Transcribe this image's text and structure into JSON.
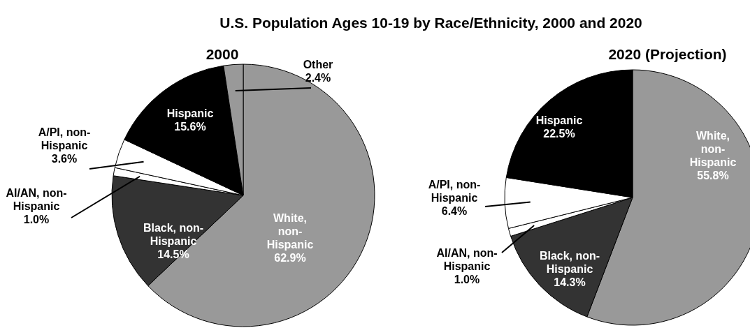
{
  "chart_data": [
    {
      "type": "pie",
      "title": "U.S. Population Ages 10-19 by Race/Ethnicity, 2000 and 2020",
      "subtitle": "2000",
      "categories": [
        "White, non-Hispanic",
        "Black, non-Hispanic",
        "AI/AN, non-Hispanic",
        "A/PI, non-Hispanic",
        "Hispanic",
        "Other"
      ],
      "values": [
        62.9,
        14.5,
        1.0,
        3.6,
        15.6,
        2.4
      ],
      "colors": [
        "#999999",
        "#333333",
        "#ffffff",
        "#ffffff",
        "#000000",
        "#999999"
      ],
      "value_labels": [
        "62.9%",
        "14.5%",
        "1.0%",
        "3.6%",
        "15.6%",
        "2.4%"
      ]
    },
    {
      "type": "pie",
      "title": "2020 (Projection)",
      "categories": [
        "White, non-Hispanic",
        "Black, non-Hispanic",
        "AI/AN, non-Hispanic",
        "A/PI, non-Hispanic",
        "Hispanic"
      ],
      "values": [
        55.8,
        14.3,
        1.0,
        6.4,
        22.5
      ],
      "colors": [
        "#999999",
        "#333333",
        "#ffffff",
        "#ffffff",
        "#000000"
      ],
      "value_labels": [
        "55.8%",
        "14.3%",
        "1.0%",
        "6.4%",
        "22.5%"
      ]
    }
  ]
}
